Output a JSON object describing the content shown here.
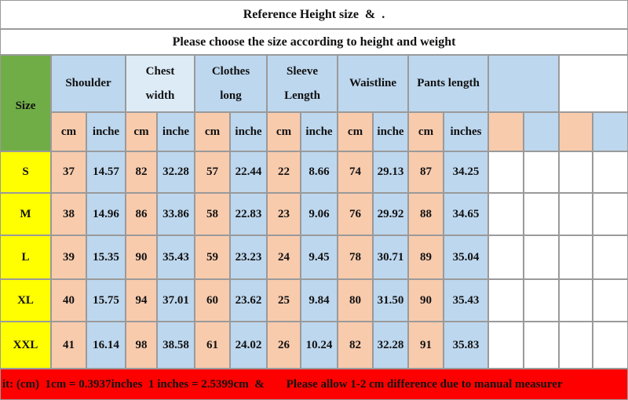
{
  "title": "Reference Height size  &  .",
  "subtitle": "Please choose the size according to height and weight",
  "table": {
    "size_header": "Size",
    "groups": [
      [
        "Shoulder"
      ],
      [
        "Chest",
        "width"
      ],
      [
        "Clothes",
        "long"
      ],
      [
        "Sleeve",
        "Length"
      ],
      [
        "Waistline"
      ],
      [
        "Pants length"
      ]
    ],
    "units": [
      "cm",
      "inche",
      "cm",
      "inche",
      "cm",
      "inche",
      "cm",
      "inche",
      "cm",
      "inche",
      "cm",
      "inches"
    ],
    "rows": [
      {
        "size": "S",
        "values": [
          "37",
          "14.57",
          "82",
          "32.28",
          "57",
          "22.44",
          "22",
          "8.66",
          "74",
          "29.13",
          "87",
          "34.25"
        ]
      },
      {
        "size": "M",
        "values": [
          "38",
          "14.96",
          "86",
          "33.86",
          "58",
          "22.83",
          "23",
          "9.06",
          "76",
          "29.92",
          "88",
          "34.65"
        ]
      },
      {
        "size": "L",
        "values": [
          "39",
          "15.35",
          "90",
          "35.43",
          "59",
          "23.23",
          "24",
          "9.45",
          "78",
          "30.71",
          "89",
          "35.04"
        ]
      },
      {
        "size": "XL",
        "values": [
          "40",
          "15.75",
          "94",
          "37.01",
          "60",
          "23.62",
          "25",
          "9.84",
          "80",
          "31.50",
          "90",
          "35.43"
        ]
      },
      {
        "size": "XXL",
        "values": [
          "41",
          "16.14",
          "98",
          "38.58",
          "61",
          "24.02",
          "26",
          "10.24",
          "82",
          "32.28",
          "91",
          "35.83"
        ]
      }
    ]
  },
  "footer": [
    "it: (cm)  1cm = 0.3937inches  1 inches = 2.5399cm  &",
    "Please allow 1-2 cm difference due to manual measurer"
  ]
}
